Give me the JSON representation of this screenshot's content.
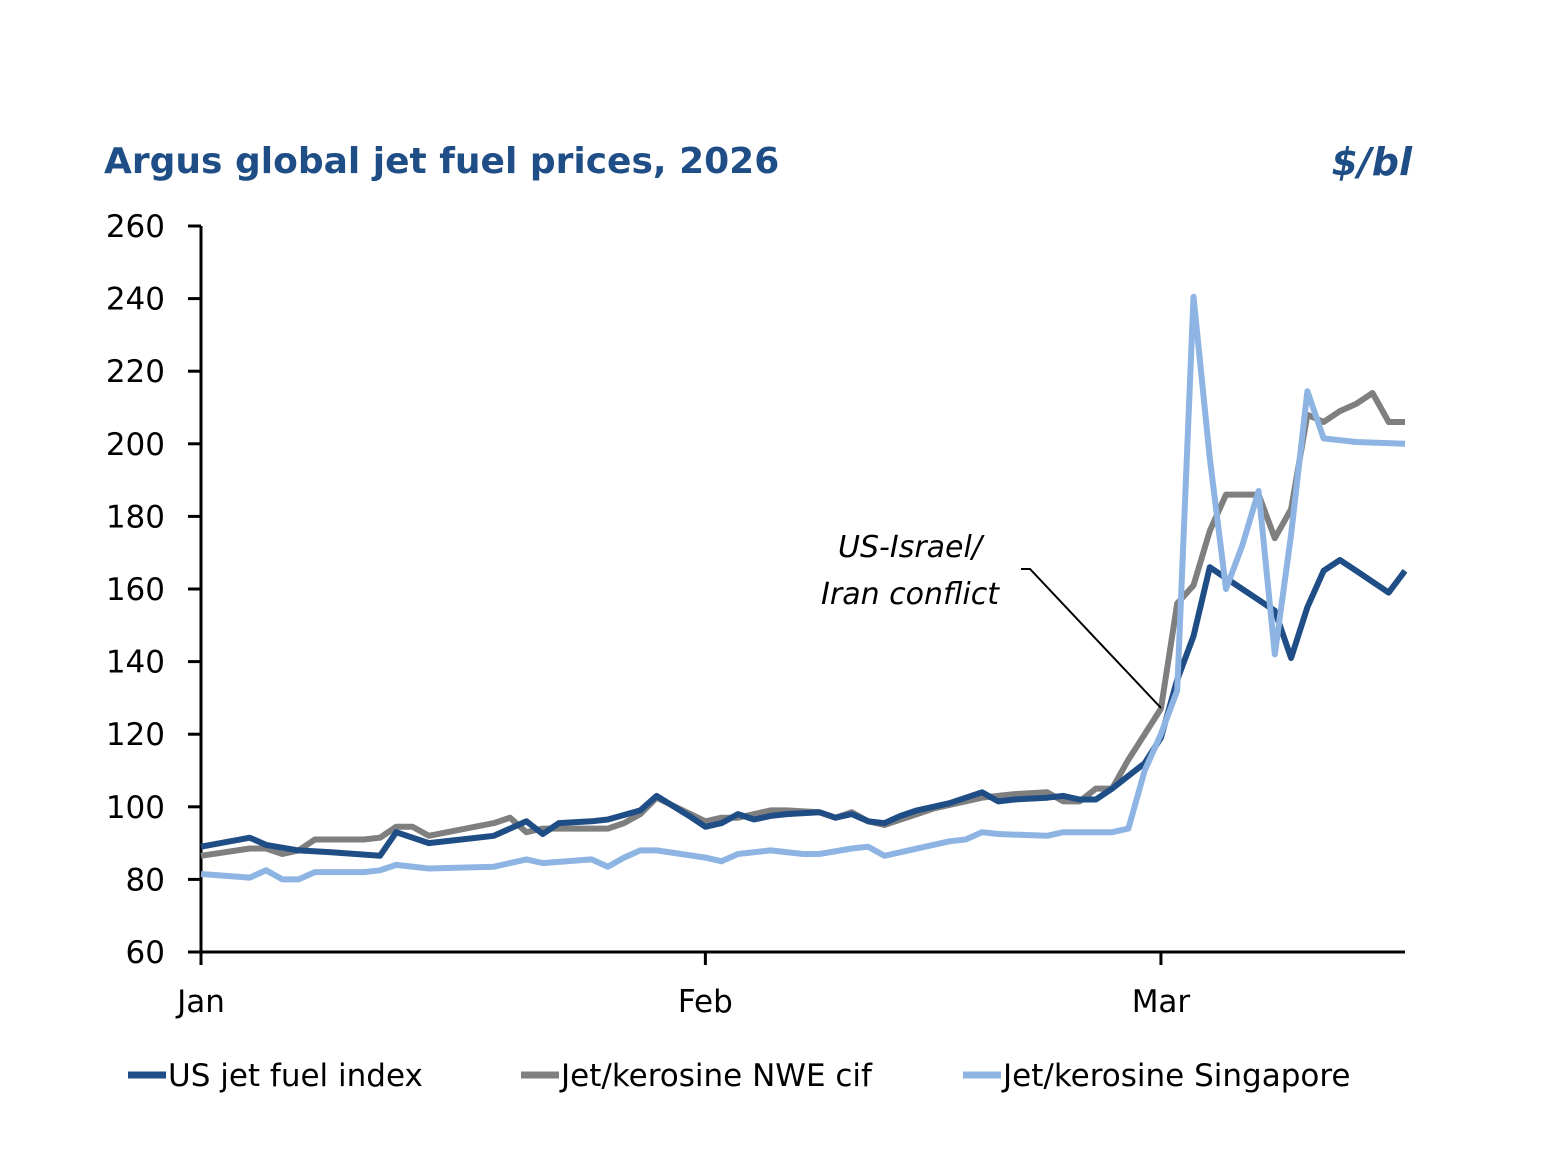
{
  "chart_data": {
    "type": "line",
    "title": "Argus global jet fuel prices, 2026",
    "unit_label": "$/bl",
    "xlabel": "",
    "ylabel": "$/bl",
    "ylim": [
      60,
      260
    ],
    "yticks": [
      60,
      80,
      100,
      120,
      140,
      160,
      180,
      200,
      220,
      240,
      260
    ],
    "xlim_days": [
      0,
      74
    ],
    "xticks": [
      {
        "label": "Jan",
        "day": 0
      },
      {
        "label": "Feb",
        "day": 31
      },
      {
        "label": "Mar",
        "day": 59
      }
    ],
    "grid": false,
    "legend_position": "bottom",
    "annotation": {
      "lines": [
        "US-Israel/",
        "Iran conflict"
      ],
      "points_to_day": 59,
      "points_to_value": 120
    },
    "series": [
      {
        "name": "US jet fuel index",
        "color": "#1f4e86",
        "x": [
          0,
          3,
          4,
          6,
          8,
          11,
          12,
          14,
          16,
          18,
          20,
          21,
          22,
          24,
          25,
          27,
          28,
          30,
          31,
          32,
          33,
          34,
          35,
          36,
          38,
          39,
          40,
          41,
          42,
          43,
          44,
          45,
          46,
          48,
          49,
          50,
          52,
          53,
          54,
          55,
          56,
          58,
          59,
          60,
          61,
          62,
          63,
          64,
          65,
          66,
          67,
          68,
          69,
          70,
          71,
          72,
          73,
          74
        ],
        "values": [
          89,
          91.5,
          89.5,
          88,
          87.5,
          86.5,
          93,
          90,
          91,
          92,
          96,
          92.5,
          95.5,
          96,
          96.5,
          99,
          103,
          97.5,
          94.5,
          95.5,
          98,
          96.5,
          97.5,
          98,
          98.5,
          97,
          98,
          96,
          95.5,
          97.5,
          99,
          100,
          101,
          104,
          101.5,
          102,
          102.5,
          103,
          102,
          102,
          105,
          112,
          119,
          135,
          147,
          166,
          163,
          160,
          157,
          154,
          141,
          155,
          165,
          168,
          165,
          162,
          159,
          165
        ]
      },
      {
        "name": "Jet/kerosine NWE cif",
        "color": "#7f7f7f",
        "x": [
          0,
          3,
          4,
          5,
          6,
          7,
          10,
          11,
          12,
          13,
          14,
          18,
          19,
          20,
          21,
          25,
          26,
          27,
          28,
          31,
          32,
          33,
          34,
          35,
          36,
          38,
          39,
          40,
          41,
          42,
          43,
          44,
          45,
          46,
          48,
          49,
          50,
          52,
          53,
          54,
          55,
          56,
          57,
          58,
          59,
          60,
          61,
          62,
          63,
          65,
          66,
          67,
          68,
          69,
          70,
          71,
          72,
          73,
          74
        ],
        "values": [
          86.5,
          88.5,
          88.5,
          87,
          88,
          91,
          91,
          91.5,
          94.5,
          94.5,
          92,
          95.5,
          97,
          93,
          94,
          94,
          95.5,
          98,
          102.5,
          96,
          97,
          97,
          98,
          99,
          99,
          98.5,
          97,
          98.5,
          96,
          95,
          96.5,
          98,
          99.5,
          100.5,
          102.5,
          103,
          103.5,
          104,
          101.5,
          101.5,
          105,
          105,
          113,
          120,
          127,
          156,
          161,
          176,
          186,
          186,
          174,
          182,
          208,
          206,
          209,
          211,
          214,
          206,
          206
        ]
      },
      {
        "name": "Jet/kerosine Singapore",
        "color": "#8db4e2",
        "x": [
          0,
          3,
          4,
          5,
          6,
          7,
          10,
          11,
          12,
          14,
          18,
          19,
          20,
          21,
          24,
          25,
          26,
          27,
          28,
          31,
          32,
          33,
          35,
          37,
          38,
          40,
          41,
          42,
          43,
          45,
          46,
          47,
          48,
          49,
          52,
          53,
          54,
          56,
          57,
          58,
          59,
          60,
          61,
          62,
          63,
          64,
          65,
          66,
          67,
          68,
          69,
          70,
          71,
          74
        ],
        "values": [
          81.5,
          80.5,
          82.5,
          80,
          80,
          82,
          82,
          82.5,
          84,
          83,
          83.5,
          84.5,
          85.5,
          84.5,
          85.5,
          83.5,
          86,
          88,
          88,
          86,
          85,
          87,
          88,
          87,
          87,
          88.5,
          89,
          86.5,
          87.5,
          89.5,
          90.5,
          91,
          93,
          92.5,
          92,
          93,
          93,
          93,
          94,
          110,
          120,
          132,
          240.5,
          196,
          160,
          172,
          187,
          142,
          175,
          214.5,
          201.5,
          201,
          200.5,
          200
        ]
      }
    ]
  }
}
